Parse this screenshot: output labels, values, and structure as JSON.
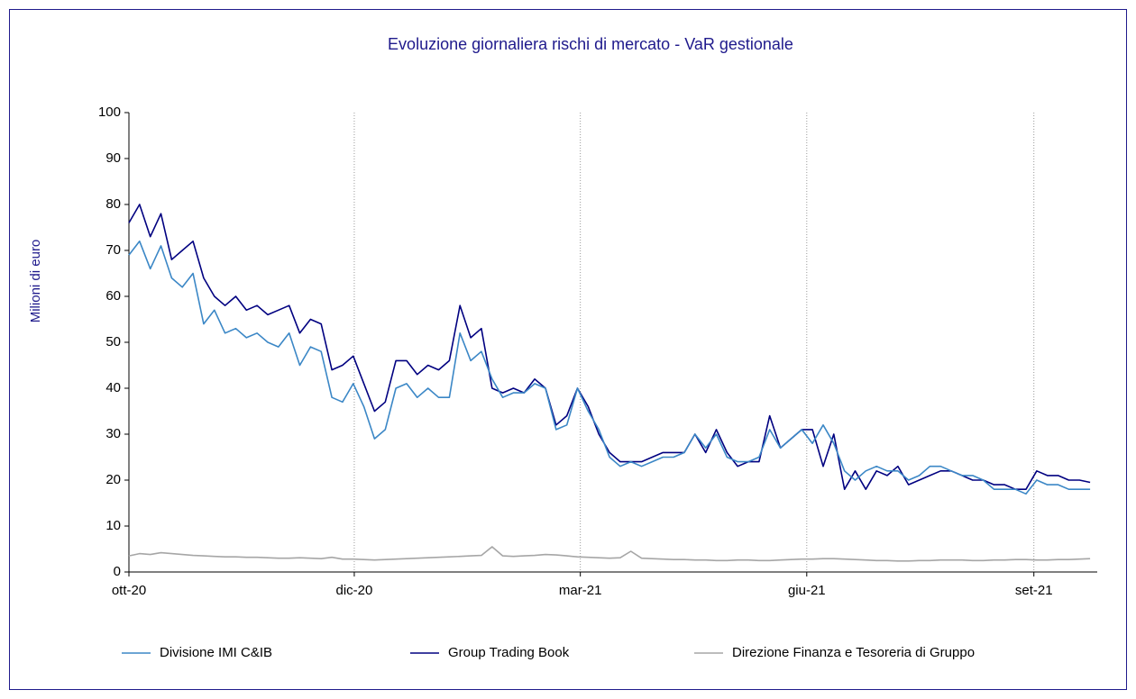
{
  "chart_data": {
    "type": "line",
    "title": "Evoluzione giornaliera rischi di mercato - VaR gestionale",
    "y_label": "Milioni di euro",
    "x": [
      0,
      3,
      6,
      9,
      12,
      15,
      18,
      21,
      24,
      27,
      30,
      33,
      36,
      39,
      42,
      45,
      48,
      51,
      54,
      57,
      60,
      63,
      66,
      69,
      72,
      75,
      78,
      81,
      84,
      87,
      90,
      93,
      96,
      99,
      102,
      105,
      108,
      111,
      114,
      117,
      120,
      123,
      126,
      129,
      132,
      135,
      138,
      141,
      144,
      147,
      150,
      153,
      156,
      159,
      162,
      165,
      168,
      171,
      174,
      177,
      180,
      183,
      186,
      189,
      192,
      195,
      198,
      201,
      204,
      207,
      210,
      213,
      216,
      219,
      222,
      225,
      228,
      231,
      234,
      237,
      240,
      243,
      246,
      249,
      252,
      255,
      258,
      261,
      264,
      267,
      270
    ],
    "xlim": [
      0,
      272
    ],
    "xticks": [
      {
        "value": 0,
        "label": "ott-20"
      },
      {
        "value": 63.3,
        "label": "dic-20"
      },
      {
        "value": 126.8,
        "label": "mar-21"
      },
      {
        "value": 190.4,
        "label": "giu-21"
      },
      {
        "value": 254.2,
        "label": "set-21"
      }
    ],
    "ylim": [
      0,
      100
    ],
    "yticks": [
      0,
      10,
      20,
      30,
      40,
      50,
      60,
      70,
      80,
      90,
      100
    ],
    "grid": "x",
    "legend": "bottom",
    "series": [
      {
        "name": "Divisione IMI C&IB",
        "color": "#3b87c6",
        "values": [
          69,
          72,
          66,
          71,
          64,
          62,
          65,
          54,
          57,
          52,
          53,
          51,
          52,
          50,
          49,
          52,
          45,
          49,
          48,
          38,
          37,
          41,
          36,
          29,
          31,
          40,
          41,
          38,
          40,
          38,
          38,
          52,
          46,
          48,
          42,
          38,
          39,
          39,
          41,
          40,
          31,
          32,
          40,
          35,
          31,
          25,
          23,
          24,
          23,
          24,
          25,
          25,
          26,
          30,
          27,
          30,
          25,
          24,
          24,
          25,
          31,
          27,
          29,
          31,
          28,
          32,
          28,
          22,
          20,
          22,
          23,
          22,
          22,
          20,
          21,
          23,
          23,
          22,
          21,
          21,
          20,
          18,
          18,
          18,
          17,
          20,
          19,
          19,
          18,
          18,
          18
        ]
      },
      {
        "name": "Group Trading Book",
        "color": "#000080",
        "values": [
          76,
          80,
          73,
          78,
          68,
          70,
          72,
          64,
          60,
          58,
          60,
          57,
          58,
          56,
          57,
          58,
          52,
          55,
          54,
          44,
          45,
          47,
          41,
          35,
          37,
          46,
          46,
          43,
          45,
          44,
          46,
          58,
          51,
          53,
          40,
          39,
          40,
          39,
          42,
          40,
          32,
          34,
          40,
          36,
          30,
          26,
          24,
          24,
          24,
          25,
          26,
          26,
          26,
          30,
          26,
          31,
          26,
          23,
          24,
          24,
          34,
          27,
          29,
          31,
          31,
          23,
          30,
          18,
          22,
          18,
          22,
          21,
          23,
          19,
          20,
          21,
          22,
          22,
          21,
          20,
          20,
          19,
          19,
          18,
          18,
          22,
          21,
          21,
          20,
          20,
          19.5
        ]
      },
      {
        "name": "Direzione Finanza e Tesoreria di Gruppo",
        "color": "#a6a6a6",
        "values": [
          3.5,
          4,
          3.8,
          4.2,
          4,
          3.8,
          3.6,
          3.5,
          3.4,
          3.3,
          3.3,
          3.2,
          3.2,
          3.1,
          3,
          3,
          3.1,
          3,
          2.9,
          3.2,
          2.8,
          2.8,
          2.7,
          2.6,
          2.7,
          2.8,
          2.9,
          3,
          3.1,
          3.2,
          3.3,
          3.4,
          3.5,
          3.6,
          5.5,
          3.5,
          3.4,
          3.5,
          3.6,
          3.8,
          3.7,
          3.5,
          3.3,
          3.2,
          3.1,
          3,
          3.1,
          4.5,
          3,
          2.9,
          2.8,
          2.7,
          2.7,
          2.6,
          2.6,
          2.5,
          2.5,
          2.6,
          2.6,
          2.5,
          2.5,
          2.6,
          2.7,
          2.8,
          2.8,
          2.9,
          2.9,
          2.8,
          2.7,
          2.6,
          2.5,
          2.5,
          2.4,
          2.4,
          2.5,
          2.5,
          2.6,
          2.6,
          2.6,
          2.5,
          2.5,
          2.6,
          2.6,
          2.7,
          2.7,
          2.6,
          2.6,
          2.7,
          2.7,
          2.8,
          2.9
        ]
      }
    ]
  }
}
